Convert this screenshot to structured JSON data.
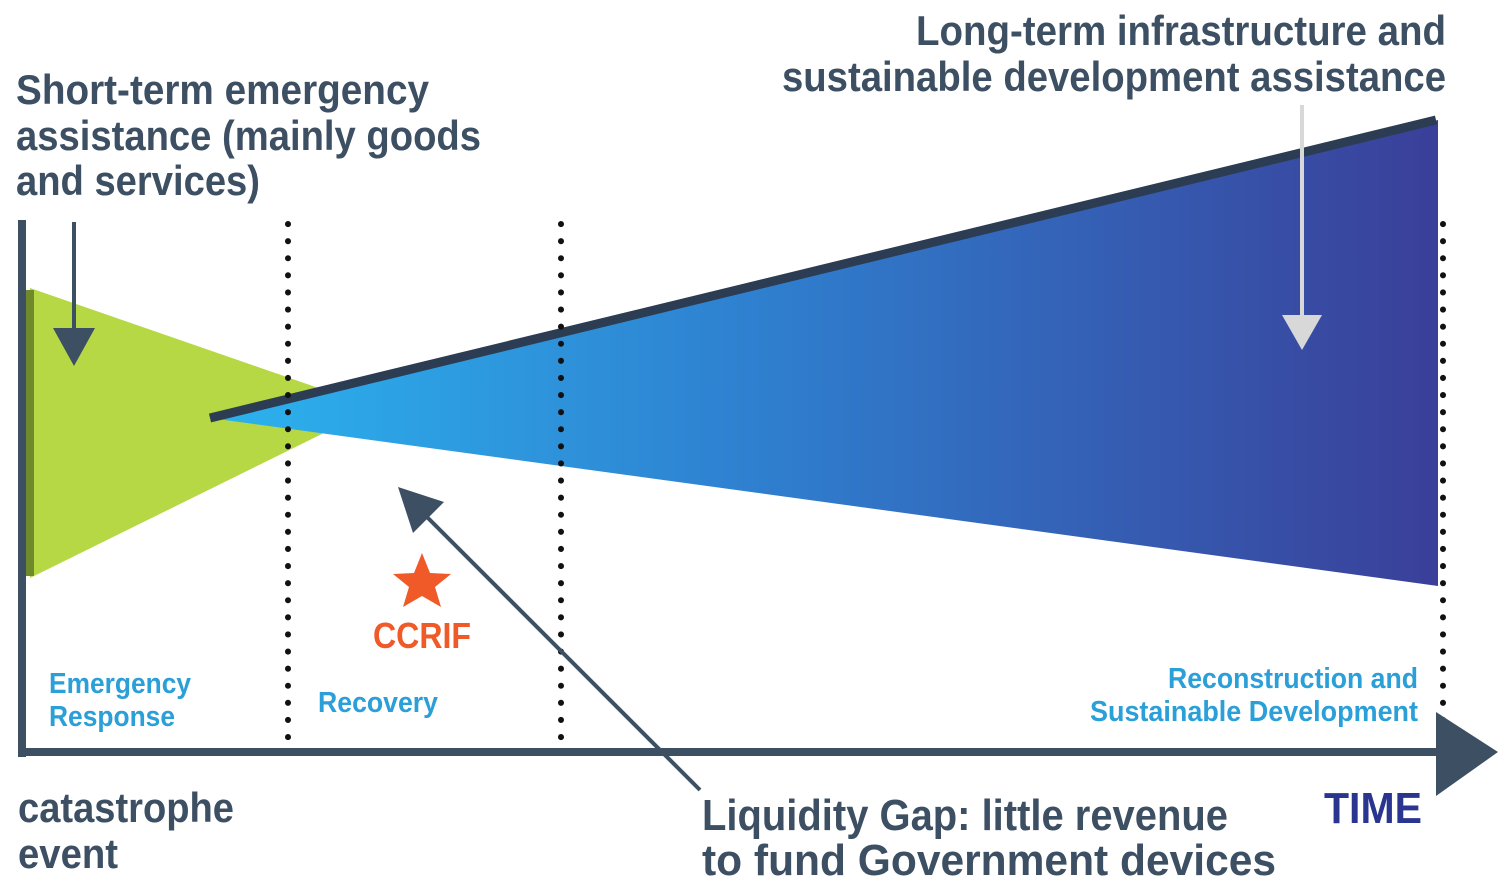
{
  "short_term": {
    "lines": [
      "Short-term emergency",
      "assistance (mainly goods",
      "and services)"
    ]
  },
  "long_term": {
    "lines": [
      "Long-term infrastructure and",
      "sustainable development assistance"
    ]
  },
  "phases": [
    {
      "lines": [
        "Emergency",
        "Response"
      ]
    },
    {
      "lines": [
        "Recovery"
      ]
    },
    {
      "lines": [
        "Reconstruction and",
        "Sustainable Development"
      ]
    }
  ],
  "ccrif": "CCRIF",
  "catastrophe": {
    "lines": [
      "catastrophe",
      "event"
    ]
  },
  "liquidity_gap": {
    "lines": [
      "Liquidity Gap: little revenue",
      "to fund Government devices"
    ]
  },
  "time": "TIME"
}
